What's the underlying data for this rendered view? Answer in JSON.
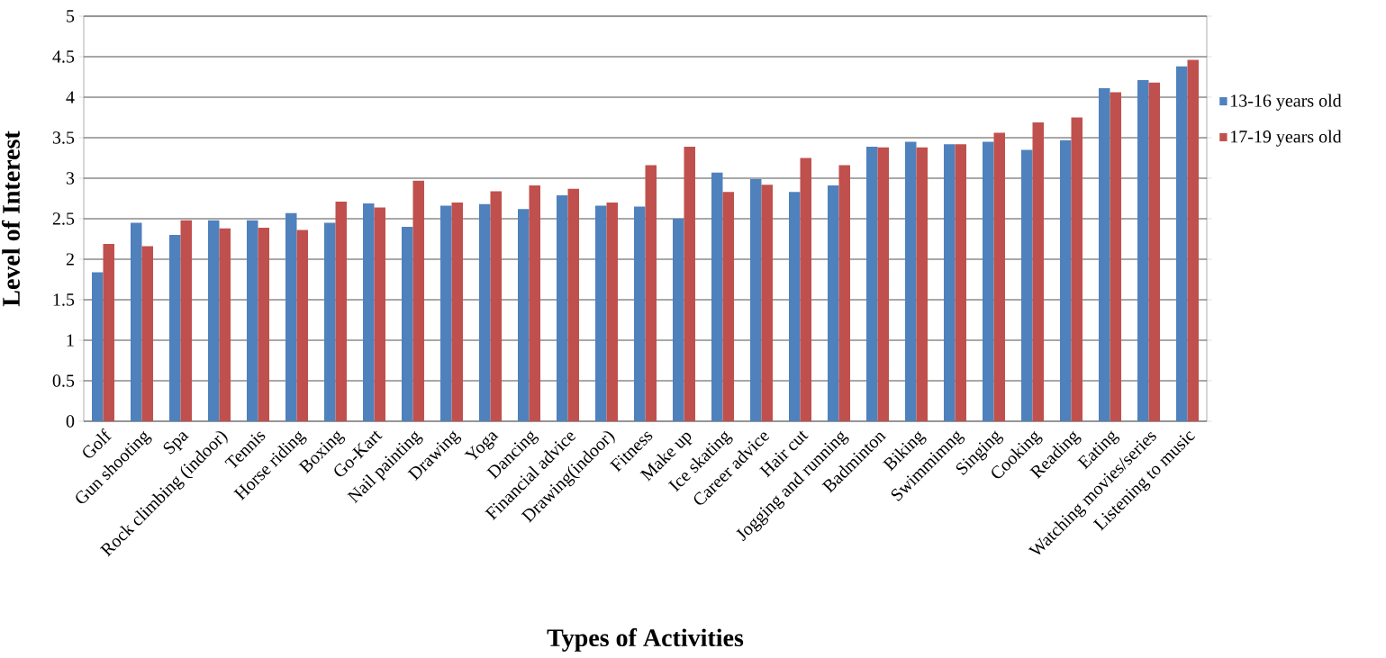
{
  "chart_data": {
    "type": "bar",
    "xlabel": "Types of Activities",
    "ylabel": "Level of Interest",
    "categories": [
      "Golf",
      "Gun shooting",
      "Spa",
      "Rock climbing (indoor)",
      "Tennis",
      "Horse riding",
      "Boxing",
      "Go-Kart",
      "Nail painting",
      "Drawing",
      "Yoga",
      "Dancing",
      "Financial advice",
      "Drawing(indoor)",
      "Fitness",
      "Make up",
      "Ice skating",
      "Career advice",
      "Hair cut",
      "Jogging and running",
      "Badminton",
      "Biking",
      "Swimmimng",
      "Singing",
      "Cooking",
      "Reading",
      "Eating",
      "Watching movies/series",
      "Listening to music"
    ],
    "series": [
      {
        "name": "13-16 years old",
        "color": "#4f81bd",
        "values": [
          1.84,
          2.45,
          2.3,
          2.48,
          2.48,
          2.57,
          2.45,
          2.69,
          2.4,
          2.66,
          2.68,
          2.62,
          2.79,
          2.66,
          2.65,
          2.5,
          3.07,
          2.99,
          2.83,
          2.91,
          3.39,
          3.45,
          3.42,
          3.45,
          3.35,
          3.47,
          4.11,
          4.21,
          4.38
        ]
      },
      {
        "name": "17-19 years old",
        "color": "#c0504d",
        "values": [
          2.19,
          2.16,
          2.48,
          2.38,
          2.39,
          2.36,
          2.71,
          2.64,
          2.97,
          2.7,
          2.84,
          2.91,
          2.87,
          2.7,
          3.16,
          3.39,
          2.83,
          2.92,
          3.25,
          3.16,
          3.38,
          3.38,
          3.42,
          3.56,
          3.69,
          3.75,
          4.06,
          4.18,
          4.46
        ]
      }
    ],
    "ylim": [
      0,
      5
    ],
    "yticks": [
      0,
      0.5,
      1,
      1.5,
      2,
      2.5,
      3,
      3.5,
      4,
      4.5,
      5
    ],
    "grid": "y",
    "legend": "right"
  }
}
